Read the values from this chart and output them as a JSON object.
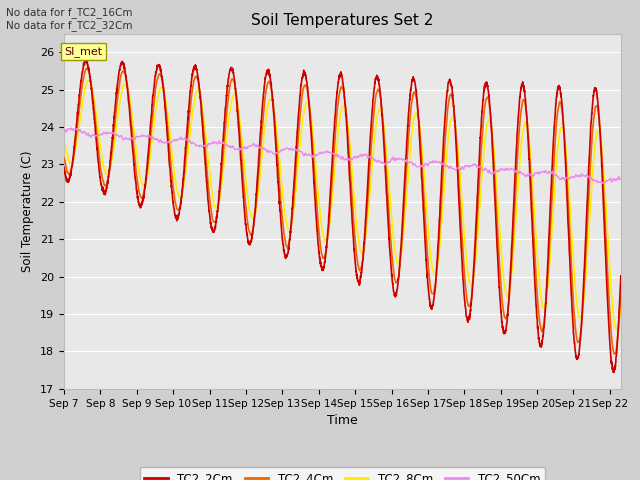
{
  "title": "Soil Temperatures Set 2",
  "ylabel": "Soil Temperature (C)",
  "xlabel": "Time",
  "ylim": [
    17.0,
    26.5
  ],
  "yticks": [
    17.0,
    18.0,
    19.0,
    20.0,
    21.0,
    22.0,
    23.0,
    24.0,
    25.0,
    26.0
  ],
  "num_days": 15.3,
  "colors": {
    "TC2_2Cm": "#cc0000",
    "TC2_4Cm": "#ee6600",
    "TC2_8Cm": "#ffee00",
    "TC2_50Cm": "#ee88ee"
  },
  "xtick_labels": [
    "Sep 7",
    "Sep 8",
    "Sep 9",
    "Sep 10",
    "Sep 11",
    "Sep 12",
    "Sep 13",
    "Sep 14",
    "Sep 15",
    "Sep 16",
    "Sep 17",
    "Sep 18",
    "Sep 19",
    "Sep 20",
    "Sep 21",
    "Sep 22"
  ],
  "annotation_text": "No data for f_TC2_16Cm\nNo data for f_TC2_32Cm",
  "si_met_label": "SI_met",
  "fig_facecolor": "#d0d0d0",
  "ax_facecolor": "#e8e8e8",
  "grid_color": "white"
}
